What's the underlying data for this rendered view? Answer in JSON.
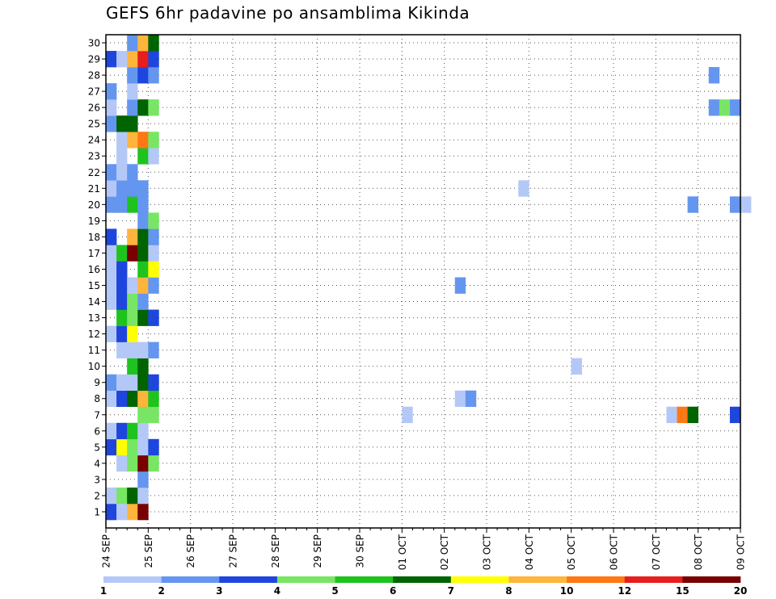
{
  "title": "GEFS 6hr padavine po ansamblima Kikinda",
  "chart_data": {
    "type": "heatmap",
    "title": "GEFS 6hr padavine po ansamblima Kikinda",
    "x_tick_labels": [
      "24 SEP",
      "25 SEP",
      "26 SEP",
      "27 SEP",
      "28 SEP",
      "29 SEP",
      "30 SEP",
      "01 OCT",
      "02 OCT",
      "03 OCT",
      "04 OCT",
      "05 OCT",
      "06 OCT",
      "07 OCT",
      "08 OCT",
      "09 OCT"
    ],
    "y_tick_labels": [
      "1",
      "2",
      "3",
      "4",
      "5",
      "6",
      "7",
      "8",
      "9",
      "10",
      "11",
      "12",
      "13",
      "14",
      "15",
      "16",
      "17",
      "18",
      "19",
      "20",
      "21",
      "22",
      "23",
      "24",
      "25",
      "26",
      "27",
      "28",
      "29",
      "30"
    ],
    "x_steps_per_day": 4,
    "grid": "dotted",
    "colorbar": {
      "position": "bottom",
      "labels": [
        "1",
        "2",
        "3",
        "4",
        "5",
        "6",
        "7",
        "8",
        "10",
        "12",
        "15",
        "20"
      ],
      "colors": [
        "#b4c8f8",
        "#6496f0",
        "#1e46dc",
        "#78e664",
        "#1ec31e",
        "#006400",
        "#ffff00",
        "#ffb43c",
        "#ff7814",
        "#e61e1e",
        "#780000"
      ]
    },
    "cells": [
      {
        "member": 1,
        "step": 0,
        "level": 2
      },
      {
        "member": 1,
        "step": 1,
        "level": 0
      },
      {
        "member": 1,
        "step": 2,
        "level": 7
      },
      {
        "member": 1,
        "step": 3,
        "level": 10
      },
      {
        "member": 2,
        "step": 0,
        "level": 0
      },
      {
        "member": 2,
        "step": 1,
        "level": 3
      },
      {
        "member": 2,
        "step": 2,
        "level": 5
      },
      {
        "member": 2,
        "step": 3,
        "level": 0
      },
      {
        "member": 3,
        "step": 3,
        "level": 1
      },
      {
        "member": 4,
        "step": 1,
        "level": 0
      },
      {
        "member": 4,
        "step": 2,
        "level": 3
      },
      {
        "member": 4,
        "step": 3,
        "level": 10
      },
      {
        "member": 4,
        "step": 4,
        "level": 3
      },
      {
        "member": 5,
        "step": 0,
        "level": 2
      },
      {
        "member": 5,
        "step": 1,
        "level": 6
      },
      {
        "member": 5,
        "step": 2,
        "level": 3
      },
      {
        "member": 5,
        "step": 3,
        "level": 0
      },
      {
        "member": 5,
        "step": 4,
        "level": 2
      },
      {
        "member": 6,
        "step": 0,
        "level": 0
      },
      {
        "member": 6,
        "step": 1,
        "level": 2
      },
      {
        "member": 6,
        "step": 2,
        "level": 4
      },
      {
        "member": 6,
        "step": 3,
        "level": 0
      },
      {
        "member": 7,
        "step": 3,
        "level": 3
      },
      {
        "member": 7,
        "step": 4,
        "level": 3
      },
      {
        "member": 7,
        "step": 28,
        "level": 0
      },
      {
        "member": 7,
        "step": 53,
        "level": 0
      },
      {
        "member": 7,
        "step": 54,
        "level": 8
      },
      {
        "member": 7,
        "step": 55,
        "level": 5
      },
      {
        "member": 7,
        "step": 59,
        "level": 2
      },
      {
        "member": 8,
        "step": 0,
        "level": 0
      },
      {
        "member": 8,
        "step": 1,
        "level": 2
      },
      {
        "member": 8,
        "step": 2,
        "level": 5
      },
      {
        "member": 8,
        "step": 3,
        "level": 7
      },
      {
        "member": 8,
        "step": 4,
        "level": 4
      },
      {
        "member": 8,
        "step": 33,
        "level": 0
      },
      {
        "member": 8,
        "step": 34,
        "level": 1
      },
      {
        "member": 9,
        "step": 0,
        "level": 1
      },
      {
        "member": 9,
        "step": 1,
        "level": 0
      },
      {
        "member": 9,
        "step": 2,
        "level": 0
      },
      {
        "member": 9,
        "step": 3,
        "level": 5
      },
      {
        "member": 9,
        "step": 4,
        "level": 2
      },
      {
        "member": 10,
        "step": 2,
        "level": 4
      },
      {
        "member": 10,
        "step": 3,
        "level": 5
      },
      {
        "member": 10,
        "step": 44,
        "level": 0
      },
      {
        "member": 11,
        "step": 1,
        "level": 0
      },
      {
        "member": 11,
        "step": 2,
        "level": 0
      },
      {
        "member": 11,
        "step": 3,
        "level": 0
      },
      {
        "member": 11,
        "step": 4,
        "level": 1
      },
      {
        "member": 12,
        "step": 0,
        "level": 0
      },
      {
        "member": 12,
        "step": 1,
        "level": 2
      },
      {
        "member": 12,
        "step": 2,
        "level": 6
      },
      {
        "member": 13,
        "step": 1,
        "level": 4
      },
      {
        "member": 13,
        "step": 2,
        "level": 3
      },
      {
        "member": 13,
        "step": 3,
        "level": 5
      },
      {
        "member": 13,
        "step": 4,
        "level": 2
      },
      {
        "member": 14,
        "step": 0,
        "level": 0
      },
      {
        "member": 14,
        "step": 1,
        "level": 2
      },
      {
        "member": 14,
        "step": 2,
        "level": 3
      },
      {
        "member": 14,
        "step": 3,
        "level": 1
      },
      {
        "member": 15,
        "step": 0,
        "level": 0
      },
      {
        "member": 15,
        "step": 1,
        "level": 2
      },
      {
        "member": 15,
        "step": 2,
        "level": 0
      },
      {
        "member": 15,
        "step": 3,
        "level": 7
      },
      {
        "member": 15,
        "step": 4,
        "level": 1
      },
      {
        "member": 15,
        "step": 33,
        "level": 1
      },
      {
        "member": 16,
        "step": 0,
        "level": 0
      },
      {
        "member": 16,
        "step": 1,
        "level": 2
      },
      {
        "member": 16,
        "step": 3,
        "level": 4
      },
      {
        "member": 16,
        "step": 4,
        "level": 6
      },
      {
        "member": 17,
        "step": 0,
        "level": 0
      },
      {
        "member": 17,
        "step": 1,
        "level": 4
      },
      {
        "member": 17,
        "step": 2,
        "level": 10
      },
      {
        "member": 17,
        "step": 3,
        "level": 5
      },
      {
        "member": 17,
        "step": 4,
        "level": 0
      },
      {
        "member": 18,
        "step": 0,
        "level": 2
      },
      {
        "member": 18,
        "step": 2,
        "level": 7
      },
      {
        "member": 18,
        "step": 3,
        "level": 5
      },
      {
        "member": 18,
        "step": 4,
        "level": 1
      },
      {
        "member": 19,
        "step": 3,
        "level": 1
      },
      {
        "member": 19,
        "step": 4,
        "level": 3
      },
      {
        "member": 20,
        "step": 0,
        "level": 1
      },
      {
        "member": 20,
        "step": 1,
        "level": 1
      },
      {
        "member": 20,
        "step": 2,
        "level": 4
      },
      {
        "member": 20,
        "step": 3,
        "level": 1
      },
      {
        "member": 20,
        "step": 55,
        "level": 1
      },
      {
        "member": 20,
        "step": 59,
        "level": 1
      },
      {
        "member": 20,
        "step": 60,
        "level": 0
      },
      {
        "member": 21,
        "step": 0,
        "level": 0
      },
      {
        "member": 21,
        "step": 1,
        "level": 1
      },
      {
        "member": 21,
        "step": 2,
        "level": 1
      },
      {
        "member": 21,
        "step": 3,
        "level": 1
      },
      {
        "member": 21,
        "step": 39,
        "level": 0
      },
      {
        "member": 22,
        "step": 0,
        "level": 1
      },
      {
        "member": 22,
        "step": 1,
        "level": 0
      },
      {
        "member": 22,
        "step": 2,
        "level": 1
      },
      {
        "member": 23,
        "step": 1,
        "level": 0
      },
      {
        "member": 23,
        "step": 3,
        "level": 4
      },
      {
        "member": 23,
        "step": 4,
        "level": 0
      },
      {
        "member": 24,
        "step": 1,
        "level": 0
      },
      {
        "member": 24,
        "step": 2,
        "level": 7
      },
      {
        "member": 24,
        "step": 3,
        "level": 8
      },
      {
        "member": 24,
        "step": 4,
        "level": 3
      },
      {
        "member": 25,
        "step": 0,
        "level": 1
      },
      {
        "member": 25,
        "step": 1,
        "level": 5
      },
      {
        "member": 25,
        "step": 2,
        "level": 5
      },
      {
        "member": 26,
        "step": 0,
        "level": 0
      },
      {
        "member": 26,
        "step": 2,
        "level": 1
      },
      {
        "member": 26,
        "step": 3,
        "level": 5
      },
      {
        "member": 26,
        "step": 4,
        "level": 3
      },
      {
        "member": 26,
        "step": 57,
        "level": 1
      },
      {
        "member": 26,
        "step": 58,
        "level": 3
      },
      {
        "member": 26,
        "step": 59,
        "level": 1
      },
      {
        "member": 27,
        "step": 0,
        "level": 1
      },
      {
        "member": 27,
        "step": 2,
        "level": 0
      },
      {
        "member": 28,
        "step": 2,
        "level": 1
      },
      {
        "member": 28,
        "step": 3,
        "level": 2
      },
      {
        "member": 28,
        "step": 4,
        "level": 1
      },
      {
        "member": 28,
        "step": 57,
        "level": 1
      },
      {
        "member": 29,
        "step": 0,
        "level": 2
      },
      {
        "member": 29,
        "step": 1,
        "level": 0
      },
      {
        "member": 29,
        "step": 2,
        "level": 7
      },
      {
        "member": 29,
        "step": 3,
        "level": 9
      },
      {
        "member": 29,
        "step": 4,
        "level": 2
      },
      {
        "member": 30,
        "step": 2,
        "level": 1
      },
      {
        "member": 30,
        "step": 3,
        "level": 7
      },
      {
        "member": 30,
        "step": 4,
        "level": 5
      }
    ]
  }
}
